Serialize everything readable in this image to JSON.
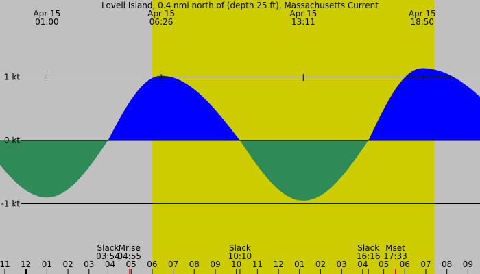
{
  "chart_data": {
    "type": "area",
    "title": "Lovell Island, 0.4 nmi north of (depth 25 ft), Massachusetts Current",
    "colors": {
      "background": "#c0c0c0",
      "daylight": "#cccc00",
      "flood": "#0000ff",
      "ebb": "#2e8b57",
      "moon_event": "#ff0000"
    },
    "y_ticks": [
      {
        "v": 1,
        "label": "1 kt"
      },
      {
        "v": 0,
        "label": "0 kt"
      },
      {
        "v": -1,
        "label": "-1 kt"
      }
    ],
    "x_hour_labels": [
      "11",
      "12",
      "01",
      "02",
      "03",
      "04",
      "05",
      "06",
      "07",
      "08",
      "09",
      "10",
      "11",
      "12",
      "01",
      "02",
      "03",
      "04",
      "05",
      "06",
      "07",
      "08",
      "09"
    ],
    "extrema": [
      {
        "date": "Apr 15",
        "time": "01:00",
        "hours": 1.0,
        "value": -0.9
      },
      {
        "date": "Apr 15",
        "time": "06:26",
        "hours": 6.43,
        "value": 1.02
      },
      {
        "date": "Apr 15",
        "time": "13:11",
        "hours": 13.18,
        "value": -0.95
      },
      {
        "date": "Apr 15",
        "time": "18:50",
        "hours": 18.83,
        "value": 1.14
      }
    ],
    "events": [
      {
        "label": "Slack",
        "time": "03:54",
        "hours": 3.9,
        "kind": "slack"
      },
      {
        "label": "Mrise",
        "time": "04:55",
        "hours": 4.92,
        "kind": "moon"
      },
      {
        "label": "Slack",
        "time": "10:10",
        "hours": 10.17,
        "kind": "slack"
      },
      {
        "label": "Slack",
        "time": "16:16",
        "hours": 16.27,
        "kind": "slack"
      },
      {
        "label": "Mset",
        "time": "17:33",
        "hours": 17.55,
        "kind": "moon"
      }
    ],
    "daylight": [
      6.0,
      19.4
    ],
    "x_range_hours": [
      -1.2,
      21.6
    ]
  }
}
